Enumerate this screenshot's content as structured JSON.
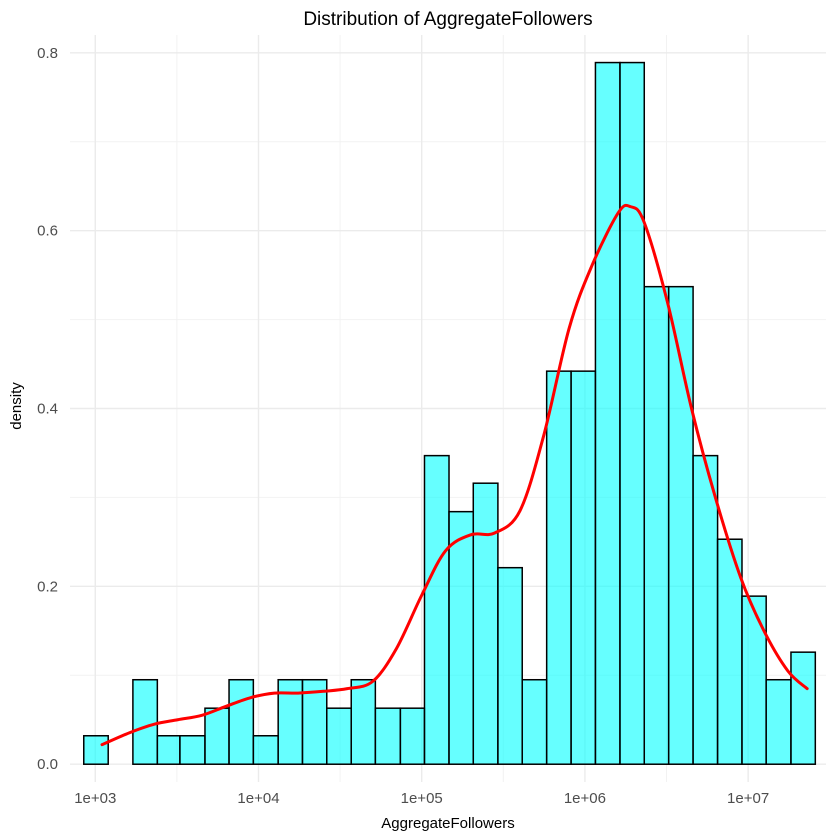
{
  "chart_data": {
    "type": "bar",
    "title": "Distribution of AggregateFollowers",
    "xlabel": "AggregateFollowers",
    "ylabel": "density",
    "x_scale": "log10",
    "xlim": [
      700,
      30000000
    ],
    "ylim": [
      -0.02,
      0.82
    ],
    "x_ticks": [
      1000,
      10000,
      100000,
      1000000,
      10000000
    ],
    "x_tick_labels": [
      "1e+03",
      "1e+04",
      "1e+05",
      "1e+06",
      "1e+07"
    ],
    "y_ticks": [
      0.0,
      0.2,
      0.4,
      0.6,
      0.8
    ],
    "y_tick_labels": [
      "0.0",
      "0.2",
      "0.4",
      "0.6",
      "0.8"
    ],
    "grid": true,
    "colors": {
      "bar_fill": "#00ffff",
      "bar_stroke": "#000000",
      "density_line": "#ff0000"
    },
    "histogram": {
      "bin_edges": [
        850,
        1200,
        1700,
        2400,
        3300,
        4700,
        6600,
        9300,
        13200,
        18600,
        26200,
        37000,
        52000,
        74000,
        104000,
        147000,
        207000,
        293000,
        413000,
        583000,
        823000,
        1160000,
        1640000,
        2310000,
        3260000,
        4600000,
        6500000,
        9170000,
        12900000,
        18300000,
        25800000
      ],
      "densities": [
        0.032,
        0.0,
        0.095,
        0.032,
        0.032,
        0.063,
        0.095,
        0.032,
        0.095,
        0.095,
        0.063,
        0.095,
        0.063,
        0.063,
        0.347,
        0.284,
        0.316,
        0.221,
        0.095,
        0.442,
        0.442,
        0.789,
        0.789,
        0.537,
        0.537,
        0.347,
        0.253,
        0.189,
        0.095,
        0.126
      ]
    },
    "density_curve": {
      "x": [
        1100,
        1600,
        2300,
        3200,
        4500,
        6300,
        9000,
        12500,
        17500,
        25000,
        35000,
        50000,
        70000,
        100000,
        140000,
        200000,
        280000,
        400000,
        560000,
        800000,
        1100000,
        1600000,
        1900000,
        2300000,
        3200000,
        4500000,
        6300000,
        9000000,
        12500000,
        17500000,
        23000000
      ],
      "y": [
        0.022,
        0.035,
        0.045,
        0.05,
        0.055,
        0.065,
        0.075,
        0.08,
        0.08,
        0.082,
        0.085,
        0.093,
        0.13,
        0.19,
        0.24,
        0.258,
        0.26,
        0.285,
        0.37,
        0.49,
        0.56,
        0.62,
        0.627,
        0.61,
        0.52,
        0.4,
        0.3,
        0.21,
        0.15,
        0.105,
        0.085
      ]
    }
  }
}
